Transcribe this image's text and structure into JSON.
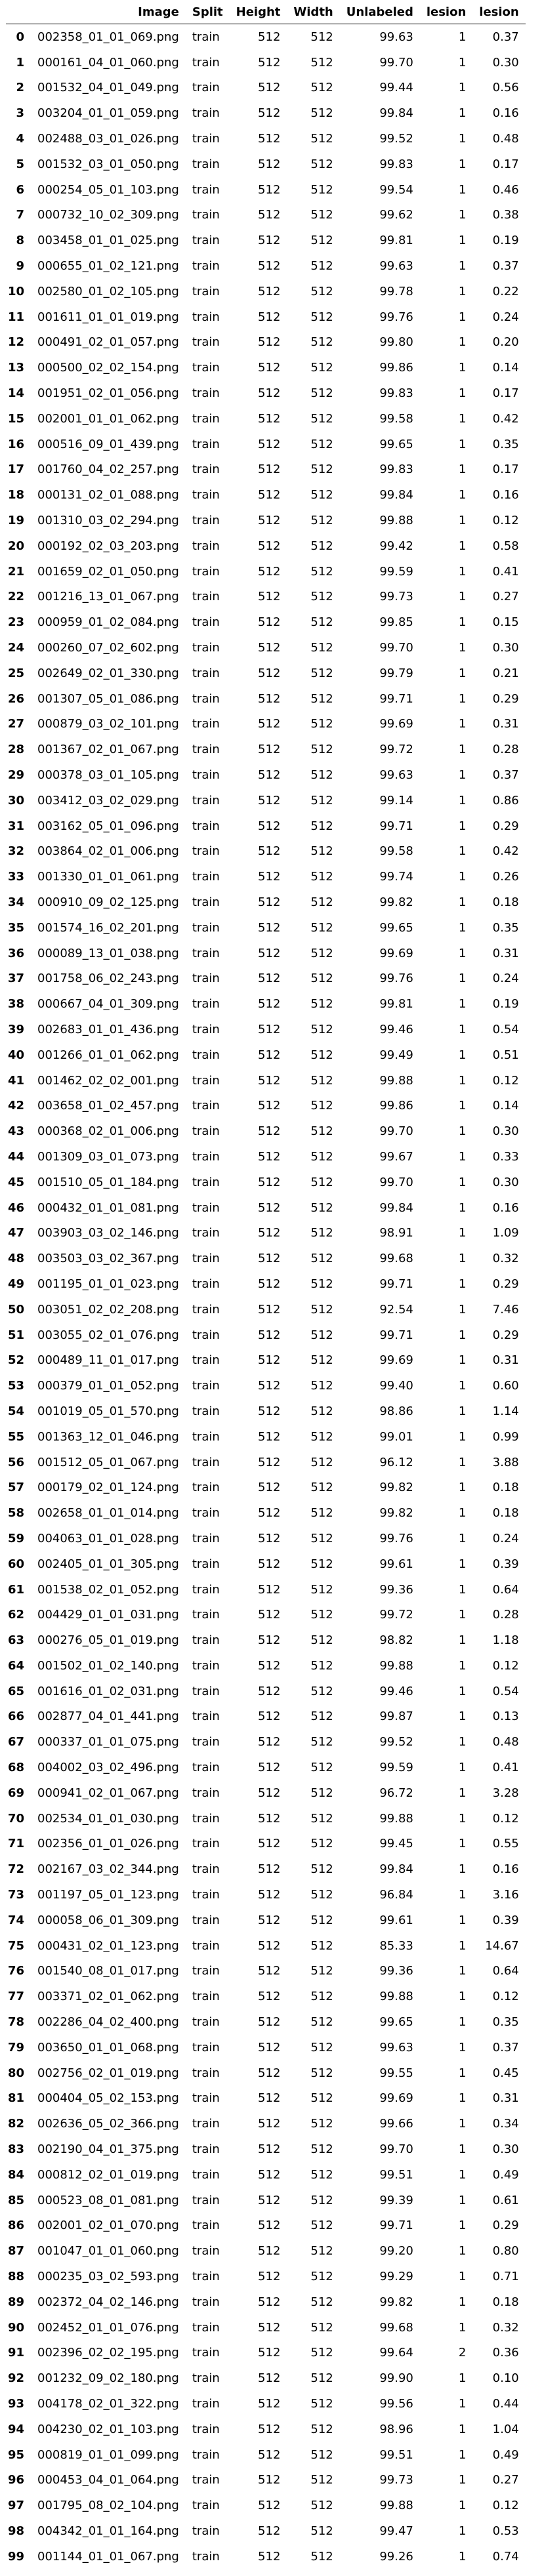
{
  "table": {
    "columns": [
      "Image",
      "Split",
      "Height",
      "Width",
      "Unlabeled",
      "lesion",
      "lesion"
    ],
    "rows": [
      [
        "0",
        "002358_01_01_069.png",
        "train",
        "512",
        "512",
        "99.63",
        "1",
        "0.37"
      ],
      [
        "1",
        "000161_04_01_060.png",
        "train",
        "512",
        "512",
        "99.70",
        "1",
        "0.30"
      ],
      [
        "2",
        "001532_04_01_049.png",
        "train",
        "512",
        "512",
        "99.44",
        "1",
        "0.56"
      ],
      [
        "3",
        "003204_01_01_059.png",
        "train",
        "512",
        "512",
        "99.84",
        "1",
        "0.16"
      ],
      [
        "4",
        "002488_03_01_026.png",
        "train",
        "512",
        "512",
        "99.52",
        "1",
        "0.48"
      ],
      [
        "5",
        "001532_03_01_050.png",
        "train",
        "512",
        "512",
        "99.83",
        "1",
        "0.17"
      ],
      [
        "6",
        "000254_05_01_103.png",
        "train",
        "512",
        "512",
        "99.54",
        "1",
        "0.46"
      ],
      [
        "7",
        "000732_10_02_309.png",
        "train",
        "512",
        "512",
        "99.62",
        "1",
        "0.38"
      ],
      [
        "8",
        "003458_01_01_025.png",
        "train",
        "512",
        "512",
        "99.81",
        "1",
        "0.19"
      ],
      [
        "9",
        "000655_01_02_121.png",
        "train",
        "512",
        "512",
        "99.63",
        "1",
        "0.37"
      ],
      [
        "10",
        "002580_01_02_105.png",
        "train",
        "512",
        "512",
        "99.78",
        "1",
        "0.22"
      ],
      [
        "11",
        "001611_01_01_019.png",
        "train",
        "512",
        "512",
        "99.76",
        "1",
        "0.24"
      ],
      [
        "12",
        "000491_02_01_057.png",
        "train",
        "512",
        "512",
        "99.80",
        "1",
        "0.20"
      ],
      [
        "13",
        "000500_02_02_154.png",
        "train",
        "512",
        "512",
        "99.86",
        "1",
        "0.14"
      ],
      [
        "14",
        "001951_02_01_056.png",
        "train",
        "512",
        "512",
        "99.83",
        "1",
        "0.17"
      ],
      [
        "15",
        "002001_01_01_062.png",
        "train",
        "512",
        "512",
        "99.58",
        "1",
        "0.42"
      ],
      [
        "16",
        "000516_09_01_439.png",
        "train",
        "512",
        "512",
        "99.65",
        "1",
        "0.35"
      ],
      [
        "17",
        "001760_04_02_257.png",
        "train",
        "512",
        "512",
        "99.83",
        "1",
        "0.17"
      ],
      [
        "18",
        "000131_02_01_088.png",
        "train",
        "512",
        "512",
        "99.84",
        "1",
        "0.16"
      ],
      [
        "19",
        "001310_03_02_294.png",
        "train",
        "512",
        "512",
        "99.88",
        "1",
        "0.12"
      ],
      [
        "20",
        "000192_02_03_203.png",
        "train",
        "512",
        "512",
        "99.42",
        "1",
        "0.58"
      ],
      [
        "21",
        "001659_02_01_050.png",
        "train",
        "512",
        "512",
        "99.59",
        "1",
        "0.41"
      ],
      [
        "22",
        "001216_13_01_067.png",
        "train",
        "512",
        "512",
        "99.73",
        "1",
        "0.27"
      ],
      [
        "23",
        "000959_01_02_084.png",
        "train",
        "512",
        "512",
        "99.85",
        "1",
        "0.15"
      ],
      [
        "24",
        "000260_07_02_602.png",
        "train",
        "512",
        "512",
        "99.70",
        "1",
        "0.30"
      ],
      [
        "25",
        "002649_02_01_330.png",
        "train",
        "512",
        "512",
        "99.79",
        "1",
        "0.21"
      ],
      [
        "26",
        "001307_05_01_086.png",
        "train",
        "512",
        "512",
        "99.71",
        "1",
        "0.29"
      ],
      [
        "27",
        "000879_03_02_101.png",
        "train",
        "512",
        "512",
        "99.69",
        "1",
        "0.31"
      ],
      [
        "28",
        "001367_02_01_067.png",
        "train",
        "512",
        "512",
        "99.72",
        "1",
        "0.28"
      ],
      [
        "29",
        "000378_03_01_105.png",
        "train",
        "512",
        "512",
        "99.63",
        "1",
        "0.37"
      ],
      [
        "30",
        "003412_03_02_029.png",
        "train",
        "512",
        "512",
        "99.14",
        "1",
        "0.86"
      ],
      [
        "31",
        "003162_05_01_096.png",
        "train",
        "512",
        "512",
        "99.71",
        "1",
        "0.29"
      ],
      [
        "32",
        "003864_02_01_006.png",
        "train",
        "512",
        "512",
        "99.58",
        "1",
        "0.42"
      ],
      [
        "33",
        "001330_01_01_061.png",
        "train",
        "512",
        "512",
        "99.74",
        "1",
        "0.26"
      ],
      [
        "34",
        "000910_09_02_125.png",
        "train",
        "512",
        "512",
        "99.82",
        "1",
        "0.18"
      ],
      [
        "35",
        "001574_16_02_201.png",
        "train",
        "512",
        "512",
        "99.65",
        "1",
        "0.35"
      ],
      [
        "36",
        "000089_13_01_038.png",
        "train",
        "512",
        "512",
        "99.69",
        "1",
        "0.31"
      ],
      [
        "37",
        "001758_06_02_243.png",
        "train",
        "512",
        "512",
        "99.76",
        "1",
        "0.24"
      ],
      [
        "38",
        "000667_04_01_309.png",
        "train",
        "512",
        "512",
        "99.81",
        "1",
        "0.19"
      ],
      [
        "39",
        "002683_01_01_436.png",
        "train",
        "512",
        "512",
        "99.46",
        "1",
        "0.54"
      ],
      [
        "40",
        "001266_01_01_062.png",
        "train",
        "512",
        "512",
        "99.49",
        "1",
        "0.51"
      ],
      [
        "41",
        "001462_02_02_001.png",
        "train",
        "512",
        "512",
        "99.88",
        "1",
        "0.12"
      ],
      [
        "42",
        "003658_01_02_457.png",
        "train",
        "512",
        "512",
        "99.86",
        "1",
        "0.14"
      ],
      [
        "43",
        "000368_02_01_006.png",
        "train",
        "512",
        "512",
        "99.70",
        "1",
        "0.30"
      ],
      [
        "44",
        "001309_03_01_073.png",
        "train",
        "512",
        "512",
        "99.67",
        "1",
        "0.33"
      ],
      [
        "45",
        "001510_05_01_184.png",
        "train",
        "512",
        "512",
        "99.70",
        "1",
        "0.30"
      ],
      [
        "46",
        "000432_01_01_081.png",
        "train",
        "512",
        "512",
        "99.84",
        "1",
        "0.16"
      ],
      [
        "47",
        "003903_03_02_146.png",
        "train",
        "512",
        "512",
        "98.91",
        "1",
        "1.09"
      ],
      [
        "48",
        "003503_03_02_367.png",
        "train",
        "512",
        "512",
        "99.68",
        "1",
        "0.32"
      ],
      [
        "49",
        "001195_01_01_023.png",
        "train",
        "512",
        "512",
        "99.71",
        "1",
        "0.29"
      ],
      [
        "50",
        "003051_02_02_208.png",
        "train",
        "512",
        "512",
        "92.54",
        "1",
        "7.46"
      ],
      [
        "51",
        "003055_02_01_076.png",
        "train",
        "512",
        "512",
        "99.71",
        "1",
        "0.29"
      ],
      [
        "52",
        "000489_11_01_017.png",
        "train",
        "512",
        "512",
        "99.69",
        "1",
        "0.31"
      ],
      [
        "53",
        "000379_01_01_052.png",
        "train",
        "512",
        "512",
        "99.40",
        "1",
        "0.60"
      ],
      [
        "54",
        "001019_05_01_570.png",
        "train",
        "512",
        "512",
        "98.86",
        "1",
        "1.14"
      ],
      [
        "55",
        "001363_12_01_046.png",
        "train",
        "512",
        "512",
        "99.01",
        "1",
        "0.99"
      ],
      [
        "56",
        "001512_05_01_067.png",
        "train",
        "512",
        "512",
        "96.12",
        "1",
        "3.88"
      ],
      [
        "57",
        "000179_02_01_124.png",
        "train",
        "512",
        "512",
        "99.82",
        "1",
        "0.18"
      ],
      [
        "58",
        "002658_01_01_014.png",
        "train",
        "512",
        "512",
        "99.82",
        "1",
        "0.18"
      ],
      [
        "59",
        "004063_01_01_028.png",
        "train",
        "512",
        "512",
        "99.76",
        "1",
        "0.24"
      ],
      [
        "60",
        "002405_01_01_305.png",
        "train",
        "512",
        "512",
        "99.61",
        "1",
        "0.39"
      ],
      [
        "61",
        "001538_02_01_052.png",
        "train",
        "512",
        "512",
        "99.36",
        "1",
        "0.64"
      ],
      [
        "62",
        "004429_01_01_031.png",
        "train",
        "512",
        "512",
        "99.72",
        "1",
        "0.28"
      ],
      [
        "63",
        "000276_05_01_019.png",
        "train",
        "512",
        "512",
        "98.82",
        "1",
        "1.18"
      ],
      [
        "64",
        "001502_01_02_140.png",
        "train",
        "512",
        "512",
        "99.88",
        "1",
        "0.12"
      ],
      [
        "65",
        "001616_01_02_031.png",
        "train",
        "512",
        "512",
        "99.46",
        "1",
        "0.54"
      ],
      [
        "66",
        "002877_04_01_441.png",
        "train",
        "512",
        "512",
        "99.87",
        "1",
        "0.13"
      ],
      [
        "67",
        "000337_01_01_075.png",
        "train",
        "512",
        "512",
        "99.52",
        "1",
        "0.48"
      ],
      [
        "68",
        "004002_03_02_496.png",
        "train",
        "512",
        "512",
        "99.59",
        "1",
        "0.41"
      ],
      [
        "69",
        "000941_02_01_067.png",
        "train",
        "512",
        "512",
        "96.72",
        "1",
        "3.28"
      ],
      [
        "70",
        "002534_01_01_030.png",
        "train",
        "512",
        "512",
        "99.88",
        "1",
        "0.12"
      ],
      [
        "71",
        "002356_01_01_026.png",
        "train",
        "512",
        "512",
        "99.45",
        "1",
        "0.55"
      ],
      [
        "72",
        "002167_03_02_344.png",
        "train",
        "512",
        "512",
        "99.84",
        "1",
        "0.16"
      ],
      [
        "73",
        "001197_05_01_123.png",
        "train",
        "512",
        "512",
        "96.84",
        "1",
        "3.16"
      ],
      [
        "74",
        "000058_06_01_309.png",
        "train",
        "512",
        "512",
        "99.61",
        "1",
        "0.39"
      ],
      [
        "75",
        "000431_02_01_123.png",
        "train",
        "512",
        "512",
        "85.33",
        "1",
        "14.67"
      ],
      [
        "76",
        "001540_08_01_017.png",
        "train",
        "512",
        "512",
        "99.36",
        "1",
        "0.64"
      ],
      [
        "77",
        "003371_02_01_062.png",
        "train",
        "512",
        "512",
        "99.88",
        "1",
        "0.12"
      ],
      [
        "78",
        "002286_04_02_400.png",
        "train",
        "512",
        "512",
        "99.65",
        "1",
        "0.35"
      ],
      [
        "79",
        "003650_01_01_068.png",
        "train",
        "512",
        "512",
        "99.63",
        "1",
        "0.37"
      ],
      [
        "80",
        "002756_02_01_019.png",
        "train",
        "512",
        "512",
        "99.55",
        "1",
        "0.45"
      ],
      [
        "81",
        "000404_05_02_153.png",
        "train",
        "512",
        "512",
        "99.69",
        "1",
        "0.31"
      ],
      [
        "82",
        "002636_05_02_366.png",
        "train",
        "512",
        "512",
        "99.66",
        "1",
        "0.34"
      ],
      [
        "83",
        "002190_04_01_375.png",
        "train",
        "512",
        "512",
        "99.70",
        "1",
        "0.30"
      ],
      [
        "84",
        "000812_02_01_019.png",
        "train",
        "512",
        "512",
        "99.51",
        "1",
        "0.49"
      ],
      [
        "85",
        "000523_08_01_081.png",
        "train",
        "512",
        "512",
        "99.39",
        "1",
        "0.61"
      ],
      [
        "86",
        "002001_02_01_070.png",
        "train",
        "512",
        "512",
        "99.71",
        "1",
        "0.29"
      ],
      [
        "87",
        "001047_01_01_060.png",
        "train",
        "512",
        "512",
        "99.20",
        "1",
        "0.80"
      ],
      [
        "88",
        "000235_03_02_593.png",
        "train",
        "512",
        "512",
        "99.29",
        "1",
        "0.71"
      ],
      [
        "89",
        "002372_04_02_146.png",
        "train",
        "512",
        "512",
        "99.82",
        "1",
        "0.18"
      ],
      [
        "90",
        "002452_01_01_076.png",
        "train",
        "512",
        "512",
        "99.68",
        "1",
        "0.32"
      ],
      [
        "91",
        "002396_02_02_195.png",
        "train",
        "512",
        "512",
        "99.64",
        "2",
        "0.36"
      ],
      [
        "92",
        "001232_09_02_180.png",
        "train",
        "512",
        "512",
        "99.90",
        "1",
        "0.10"
      ],
      [
        "93",
        "004178_02_01_322.png",
        "train",
        "512",
        "512",
        "99.56",
        "1",
        "0.44"
      ],
      [
        "94",
        "004230_02_01_103.png",
        "train",
        "512",
        "512",
        "98.96",
        "1",
        "1.04"
      ],
      [
        "95",
        "000819_01_01_099.png",
        "train",
        "512",
        "512",
        "99.51",
        "1",
        "0.49"
      ],
      [
        "96",
        "000453_04_01_064.png",
        "train",
        "512",
        "512",
        "99.73",
        "1",
        "0.27"
      ],
      [
        "97",
        "001795_08_02_104.png",
        "train",
        "512",
        "512",
        "99.88",
        "1",
        "0.12"
      ],
      [
        "98",
        "004342_01_01_164.png",
        "train",
        "512",
        "512",
        "99.47",
        "1",
        "0.53"
      ],
      [
        "99",
        "001144_01_01_067.png",
        "train",
        "512",
        "512",
        "99.26",
        "1",
        "0.74"
      ]
    ]
  }
}
